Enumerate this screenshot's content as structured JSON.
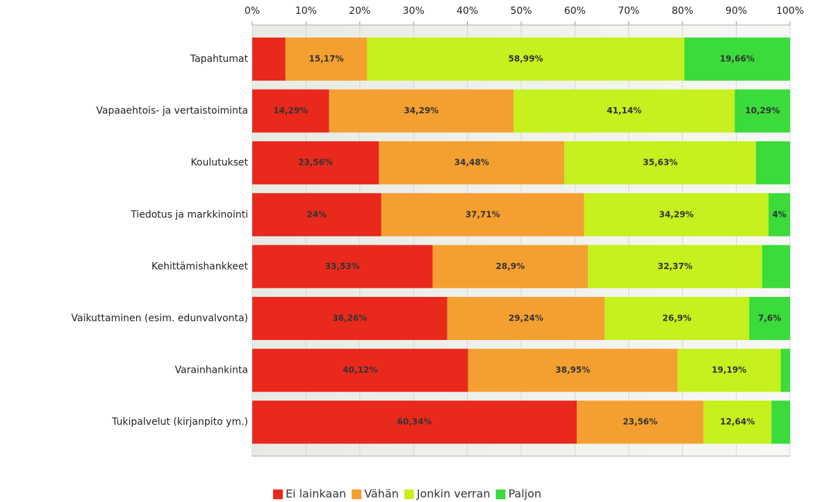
{
  "chart_data": {
    "type": "stacked_bar_horizontal",
    "categories": [
      "Tapahtumat",
      "Vapaaehtois- ja vertaistoiminta",
      "Koulutukset",
      "Tiedotus ja markkinointi",
      "Kehittämishankkeet",
      "Vaikuttaminen (esim. edunvalvonta)",
      "Varainhankinta",
      "Tukipalvelut (kirjanpito ym.)"
    ],
    "series": [
      {
        "name": "Ei lainkaan",
        "color": "#e8291c",
        "values": [
          6.18,
          14.29,
          23.56,
          24,
          33.53,
          36.26,
          40.12,
          60.34
        ],
        "value_labels": [
          null,
          "14,29%",
          "23,56%",
          "24%",
          "33,53%",
          "36,26%",
          "40,12%",
          "60,34%"
        ]
      },
      {
        "name": "Vähän",
        "color": "#f4a030",
        "values": [
          15.17,
          34.29,
          34.48,
          37.71,
          28.9,
          29.24,
          38.95,
          23.56
        ],
        "value_labels": [
          "15,17%",
          "34,29%",
          "34,48%",
          "37,71%",
          "28,9%",
          "29,24%",
          "38,95%",
          "23,56%"
        ]
      },
      {
        "name": "Jonkin verran",
        "color": "#c6f01e",
        "values": [
          58.99,
          41.14,
          35.63,
          34.29,
          32.37,
          26.9,
          19.19,
          12.64
        ],
        "value_labels": [
          "58,99%",
          "41,14%",
          "35,63%",
          "34,29%",
          "32,37%",
          "26,9%",
          "19,19%",
          "12,64%"
        ]
      },
      {
        "name": "Paljon",
        "color": "#3adb3a",
        "values": [
          19.66,
          10.29,
          6.33,
          4,
          5.2,
          7.6,
          1.74,
          3.46
        ],
        "value_labels": [
          "19,66%",
          "10,29%",
          null,
          "4%",
          null,
          "7,6%",
          null,
          null
        ]
      }
    ],
    "xlim": [
      0,
      100
    ],
    "xticks": [
      {
        "value": 0,
        "label": "0%"
      },
      {
        "value": 10,
        "label": "10%"
      },
      {
        "value": 20,
        "label": "20%"
      },
      {
        "value": 30,
        "label": "30%"
      },
      {
        "value": 40,
        "label": "40%"
      },
      {
        "value": 50,
        "label": "50%"
      },
      {
        "value": 60,
        "label": "60%"
      },
      {
        "value": 70,
        "label": "70%"
      },
      {
        "value": 80,
        "label": "80%"
      },
      {
        "value": 90,
        "label": "90%"
      },
      {
        "value": 100,
        "label": "100%"
      }
    ],
    "grid": true,
    "legend": "bottom"
  }
}
